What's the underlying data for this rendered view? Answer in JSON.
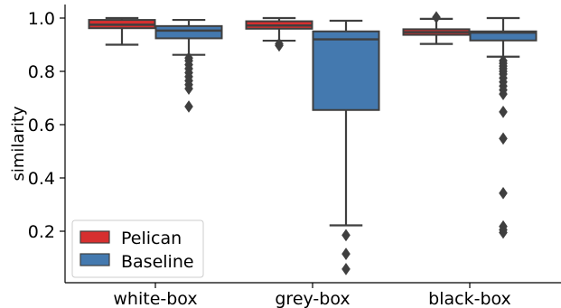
{
  "chart_data": {
    "type": "boxplot",
    "title": "",
    "xlabel": "",
    "ylabel": "similarity",
    "ylim": [
      0.02,
      1.04
    ],
    "yticks": [
      0.2,
      0.4,
      0.6,
      0.8,
      1.0
    ],
    "ytick_labels": [
      "0.2",
      "0.4",
      "0.6",
      "0.8",
      "1.0"
    ],
    "categories": [
      "white-box",
      "grey-box",
      "black-box"
    ],
    "grid": false,
    "legend": {
      "placement": "bottom-left"
    },
    "series": [
      {
        "name": "Pelican",
        "color": "#d62f2f",
        "boxes": [
          {
            "category": "white-box",
            "whisker_low": 0.9,
            "q1": 0.962,
            "median": 0.975,
            "q3": 0.993,
            "whisker_high": 1.0,
            "outliers": []
          },
          {
            "category": "grey-box",
            "whisker_low": 0.915,
            "q1": 0.96,
            "median": 0.972,
            "q3": 0.988,
            "whisker_high": 1.0,
            "outliers": [
              0.903,
              0.897
            ]
          },
          {
            "category": "black-box",
            "whisker_low": 0.903,
            "q1": 0.937,
            "median": 0.947,
            "q3": 0.958,
            "whisker_high": 0.997,
            "outliers": [
              1.003
            ]
          }
        ]
      },
      {
        "name": "Baseline",
        "color": "#4479af",
        "boxes": [
          {
            "category": "white-box",
            "whisker_low": 0.862,
            "q1": 0.924,
            "median": 0.953,
            "q3": 0.97,
            "whisker_high": 0.993,
            "outliers": [
              0.85,
              0.84,
              0.825,
              0.81,
              0.795,
              0.78,
              0.765,
              0.75,
              0.735,
              0.668
            ]
          },
          {
            "category": "grey-box",
            "whisker_low": 0.222,
            "q1": 0.655,
            "median": 0.92,
            "q3": 0.95,
            "whisker_high": 0.99,
            "outliers": [
              0.185,
              0.115,
              0.058
            ]
          },
          {
            "category": "black-box",
            "whisker_low": 0.855,
            "q1": 0.916,
            "median": 0.945,
            "q3": 0.95,
            "whisker_high": 1.0,
            "outliers": [
              0.84,
              0.83,
              0.82,
              0.81,
              0.8,
              0.79,
              0.775,
              0.76,
              0.745,
              0.73,
              0.715,
              0.648,
              0.548,
              0.343,
              0.218,
              0.205,
              0.195
            ]
          }
        ]
      }
    ]
  }
}
